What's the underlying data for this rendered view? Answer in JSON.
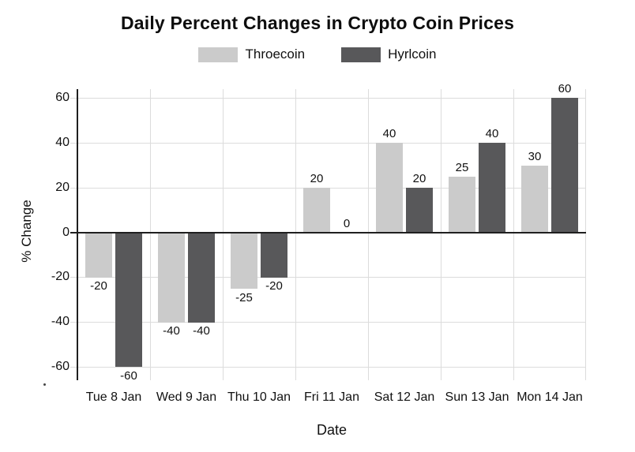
{
  "figure": {
    "background": "#ffffff"
  },
  "chart_data": {
    "type": "bar",
    "title": "Daily Percent Changes in Crypto Coin Prices",
    "categories": [
      "Tue 8 Jan",
      "Wed 9 Jan",
      "Thu 10 Jan",
      "Fri 11 Jan",
      "Sat 12 Jan",
      "Sun 13 Jan",
      "Mon 14 Jan"
    ],
    "series": [
      {
        "name": "Throecoin",
        "color": "#cbcbcb",
        "values": [
          -20,
          -40,
          -25,
          20,
          40,
          25,
          30
        ]
      },
      {
        "name": "Hyrlcoin",
        "color": "#58585a",
        "values": [
          -60,
          -40,
          -20,
          0,
          20,
          40,
          60
        ]
      }
    ],
    "xlabel": "Date",
    "ylabel": "% Change",
    "yticks": [
      60,
      40,
      20,
      0,
      -20,
      -40,
      -60
    ],
    "ylim": [
      -66,
      64
    ],
    "grid": true,
    "legend_position": "top-center",
    "bar_value_labels": true,
    "colors": {
      "grid": "#dcdcdc",
      "axis": "#1f1f1f",
      "text": "#111111"
    }
  }
}
